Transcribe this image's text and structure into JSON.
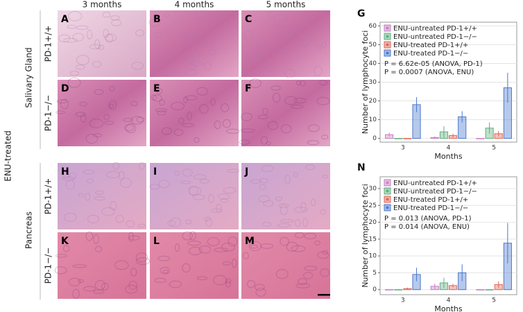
{
  "figure": {
    "group_label": "ENU-treated",
    "tissues": [
      "Salivary Gland",
      "Pancreas"
    ],
    "columns": [
      "3 months",
      "4 months",
      "5 months"
    ],
    "genotypes": [
      "PD-1+/+",
      "PD-1−/−"
    ],
    "panels": [
      [
        "A",
        "B",
        "C"
      ],
      [
        "D",
        "E",
        "F"
      ],
      [
        "H",
        "I",
        "J"
      ],
      [
        "K",
        "L",
        "M"
      ]
    ]
  },
  "chart_data": [
    {
      "type": "bar",
      "panel": "G",
      "ylabel": "Number of lymphocyte foci",
      "xlabel": "Months",
      "categories": [
        "3",
        "4",
        "5"
      ],
      "series": [
        {
          "name": "ENU-untreated PD-1+/+",
          "color": "#c77fc4",
          "values": [
            2,
            0.5,
            0
          ],
          "errors": [
            1,
            0.5,
            0
          ]
        },
        {
          "name": "ENU-untreated PD-1−/−",
          "color": "#5fb07e",
          "values": [
            0,
            3.5,
            5.5
          ],
          "errors": [
            0,
            3,
            3
          ]
        },
        {
          "name": "ENU-treated PD-1+/+",
          "color": "#e0675a",
          "values": [
            0,
            1.5,
            2.5
          ],
          "errors": [
            0,
            1,
            1.5
          ]
        },
        {
          "name": "ENU-treated PD-1−/−",
          "color": "#4a78cc",
          "values": [
            18,
            11.5,
            27
          ],
          "errors": [
            4,
            3,
            8
          ]
        }
      ],
      "annotations": [
        "P = 6.62e-05 (ANOVA, PD-1)",
        "P = 0.0007 (ANOVA, ENU)"
      ],
      "ylim": [
        -2,
        62
      ],
      "yticks": [
        0,
        10,
        20,
        30,
        40,
        50,
        60
      ],
      "grid": true,
      "legend": "upper left"
    },
    {
      "type": "bar",
      "panel": "N",
      "ylabel": "Number of lymphocyte foci",
      "xlabel": "Months",
      "categories": [
        "3",
        "4",
        "5"
      ],
      "series": [
        {
          "name": "ENU-untreated PD-1+/+",
          "color": "#c77fc4",
          "values": [
            0,
            1,
            0
          ],
          "errors": [
            0,
            0.8,
            0
          ]
        },
        {
          "name": "ENU-untreated PD-1−/−",
          "color": "#5fb07e",
          "values": [
            0,
            2,
            0
          ],
          "errors": [
            0,
            1.5,
            0
          ]
        },
        {
          "name": "ENU-treated PD-1+/+",
          "color": "#e0675a",
          "values": [
            0.3,
            1.2,
            1.5
          ],
          "errors": [
            0.3,
            0.5,
            1
          ]
        },
        {
          "name": "ENU-treated PD-1−/−",
          "color": "#4a78cc",
          "values": [
            4.5,
            5,
            13.8
          ],
          "errors": [
            2,
            2.5,
            6
          ]
        }
      ],
      "annotations": [
        "P = 0.013 (ANOVA, PD-1)",
        "P = 0.014 (ANOVA, ENU)"
      ],
      "ylim": [
        -1.5,
        33.5
      ],
      "yticks": [
        0,
        5,
        10,
        15,
        20,
        25,
        30
      ],
      "grid": true,
      "legend": "upper left"
    }
  ]
}
